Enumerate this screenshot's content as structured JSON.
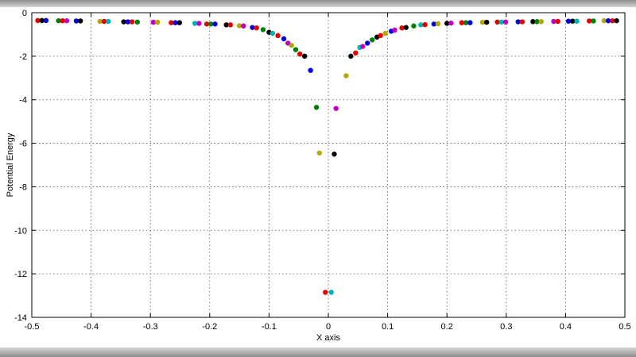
{
  "chart_data": {
    "type": "scatter",
    "title": "",
    "xlabel": "X axis",
    "ylabel": "Potential Energy",
    "xlim": [
      -0.5,
      0.5
    ],
    "ylim": [
      -14,
      0
    ],
    "grid": "dotted",
    "legend": "none",
    "xticks": [
      [
        -0.5,
        "-0.5"
      ],
      [
        -0.4,
        "-0.4"
      ],
      [
        -0.3,
        "-0.3"
      ],
      [
        -0.2,
        "-0.2"
      ],
      [
        -0.1,
        "-0.1"
      ],
      [
        0,
        "0"
      ],
      [
        0.1,
        "0.1"
      ],
      [
        0.2,
        "0.2"
      ],
      [
        0.3,
        "0.3"
      ],
      [
        0.4,
        "0.4"
      ],
      [
        0.5,
        "0.5"
      ]
    ],
    "yticks": [
      [
        0,
        "0"
      ],
      [
        -2,
        "-2"
      ],
      [
        -4,
        "-4"
      ],
      [
        -6,
        "-6"
      ],
      [
        -8,
        "-8"
      ],
      [
        -10,
        "-10"
      ],
      [
        -12,
        "-12"
      ],
      [
        -14,
        "-14"
      ]
    ],
    "marker": "filled-dot",
    "marker_radius_px": 3.2,
    "colors": {
      "b": "#0000e6",
      "g": "#008000",
      "r": "#e60000",
      "c": "#00b3b3",
      "m": "#bf00bf",
      "y": "#b3a800",
      "k": "#000000"
    },
    "points": [
      [
        -0.49,
        -0.36,
        "r"
      ],
      [
        -0.483,
        -0.36,
        "k"
      ],
      [
        -0.476,
        -0.36,
        "b"
      ],
      [
        -0.455,
        -0.37,
        "g"
      ],
      [
        -0.448,
        -0.37,
        "r"
      ],
      [
        -0.441,
        -0.37,
        "m"
      ],
      [
        -0.425,
        -0.38,
        "b"
      ],
      [
        -0.418,
        -0.38,
        "k"
      ],
      [
        -0.385,
        -0.4,
        "y"
      ],
      [
        -0.378,
        -0.4,
        "r"
      ],
      [
        -0.371,
        -0.4,
        "c"
      ],
      [
        -0.345,
        -0.42,
        "k"
      ],
      [
        -0.338,
        -0.42,
        "b"
      ],
      [
        -0.331,
        -0.42,
        "r"
      ],
      [
        -0.322,
        -0.43,
        "g"
      ],
      [
        -0.295,
        -0.44,
        "m"
      ],
      [
        -0.288,
        -0.44,
        "y"
      ],
      [
        -0.265,
        -0.46,
        "r"
      ],
      [
        -0.258,
        -0.46,
        "b"
      ],
      [
        -0.251,
        -0.46,
        "k"
      ],
      [
        -0.225,
        -0.49,
        "c"
      ],
      [
        -0.218,
        -0.49,
        "m"
      ],
      [
        -0.205,
        -0.52,
        "r"
      ],
      [
        -0.198,
        -0.52,
        "g"
      ],
      [
        -0.191,
        -0.52,
        "b"
      ],
      [
        -0.172,
        -0.56,
        "k"
      ],
      [
        -0.165,
        -0.56,
        "r"
      ],
      [
        -0.15,
        -0.6,
        "y"
      ],
      [
        -0.143,
        -0.61,
        "m"
      ],
      [
        -0.128,
        -0.68,
        "b"
      ],
      [
        -0.121,
        -0.7,
        "r"
      ],
      [
        -0.11,
        -0.78,
        "g"
      ],
      [
        -0.1,
        -0.9,
        "k"
      ],
      [
        -0.094,
        -0.95,
        "c"
      ],
      [
        -0.085,
        -1.05,
        "r"
      ],
      [
        -0.075,
        -1.2,
        "b"
      ],
      [
        -0.068,
        -1.4,
        "m"
      ],
      [
        -0.062,
        -1.5,
        "y"
      ],
      [
        -0.055,
        -1.7,
        "g"
      ],
      [
        -0.048,
        -1.9,
        "r"
      ],
      [
        -0.04,
        -2.0,
        "k"
      ],
      [
        -0.03,
        -2.65,
        "b"
      ],
      [
        -0.02,
        -4.35,
        "g"
      ],
      [
        -0.015,
        -6.45,
        "y"
      ],
      [
        -0.005,
        -12.85,
        "r"
      ],
      [
        0.005,
        -12.85,
        "c"
      ],
      [
        0.01,
        -6.5,
        "k"
      ],
      [
        0.013,
        -4.4,
        "m"
      ],
      [
        0.03,
        -2.9,
        "y"
      ],
      [
        0.038,
        -2.0,
        "k"
      ],
      [
        0.046,
        -1.85,
        "r"
      ],
      [
        0.053,
        -1.6,
        "c"
      ],
      [
        0.058,
        -1.55,
        "m"
      ],
      [
        0.066,
        -1.4,
        "b"
      ],
      [
        0.074,
        -1.25,
        "g"
      ],
      [
        0.082,
        -1.12,
        "k"
      ],
      [
        0.088,
        -1.05,
        "r"
      ],
      [
        0.096,
        -0.95,
        "y"
      ],
      [
        0.106,
        -0.85,
        "b"
      ],
      [
        0.112,
        -0.8,
        "m"
      ],
      [
        0.124,
        -0.7,
        "r"
      ],
      [
        0.131,
        -0.68,
        "k"
      ],
      [
        0.144,
        -0.61,
        "g"
      ],
      [
        0.156,
        -0.56,
        "c"
      ],
      [
        0.163,
        -0.55,
        "r"
      ],
      [
        0.178,
        -0.52,
        "b"
      ],
      [
        0.185,
        -0.51,
        "y"
      ],
      [
        0.2,
        -0.49,
        "k"
      ],
      [
        0.207,
        -0.48,
        "m"
      ],
      [
        0.225,
        -0.46,
        "r"
      ],
      [
        0.232,
        -0.46,
        "g"
      ],
      [
        0.239,
        -0.46,
        "b"
      ],
      [
        0.26,
        -0.44,
        "y"
      ],
      [
        0.267,
        -0.44,
        "k"
      ],
      [
        0.285,
        -0.43,
        "r"
      ],
      [
        0.292,
        -0.43,
        "c"
      ],
      [
        0.299,
        -0.43,
        "m"
      ],
      [
        0.32,
        -0.42,
        "b"
      ],
      [
        0.327,
        -0.42,
        "r"
      ],
      [
        0.345,
        -0.41,
        "k"
      ],
      [
        0.352,
        -0.41,
        "g"
      ],
      [
        0.359,
        -0.41,
        "y"
      ],
      [
        0.38,
        -0.4,
        "m"
      ],
      [
        0.387,
        -0.4,
        "r"
      ],
      [
        0.405,
        -0.39,
        "b"
      ],
      [
        0.412,
        -0.39,
        "k"
      ],
      [
        0.419,
        -0.39,
        "c"
      ],
      [
        0.44,
        -0.38,
        "r"
      ],
      [
        0.447,
        -0.38,
        "g"
      ],
      [
        0.465,
        -0.37,
        "y"
      ],
      [
        0.472,
        -0.37,
        "b"
      ],
      [
        0.479,
        -0.37,
        "r"
      ],
      [
        0.486,
        -0.37,
        "k"
      ]
    ]
  }
}
